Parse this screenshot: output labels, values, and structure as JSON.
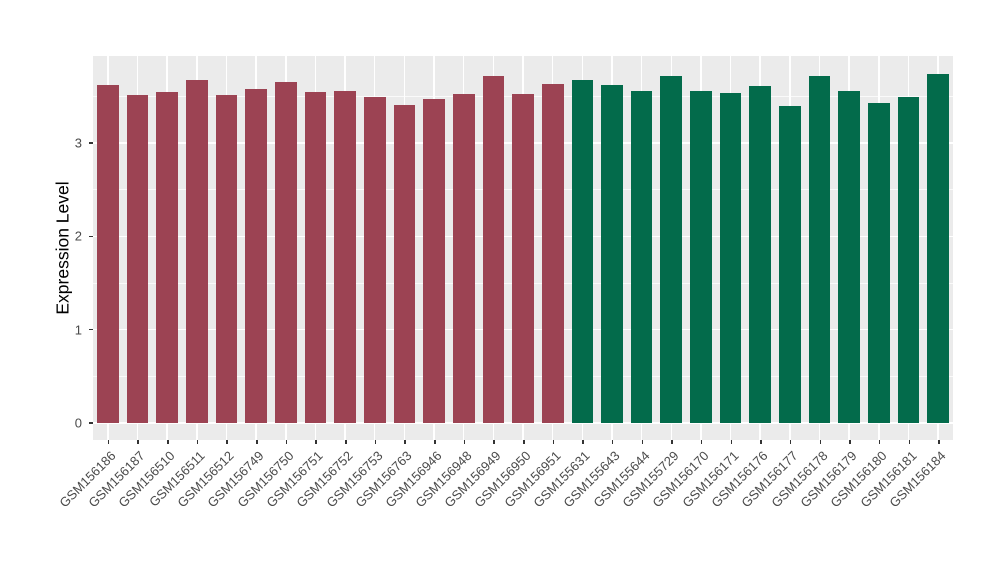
{
  "chart_data": {
    "type": "bar",
    "title": "",
    "xlabel": "",
    "ylabel": "Expression Level",
    "ylim": [
      0,
      3.93
    ],
    "yticks": [
      0,
      1,
      2,
      3
    ],
    "yticks_minor": [
      0.5,
      1.5,
      2.5,
      3.5
    ],
    "grid": "on",
    "legend_position": "none",
    "panel_background": "#EBEBEB",
    "gridline_color": "#FFFFFF",
    "group_colors": {
      "group1": "#9C4353",
      "group2": "#036B4B"
    },
    "categories": [
      "GSM156186",
      "GSM156187",
      "GSM156510",
      "GSM156511",
      "GSM156512",
      "GSM156749",
      "GSM156750",
      "GSM156751",
      "GSM156752",
      "GSM156753",
      "GSM156763",
      "GSM156946",
      "GSM156948",
      "GSM156949",
      "GSM156950",
      "GSM156951",
      "GSM155631",
      "GSM155643",
      "GSM155644",
      "GSM155729",
      "GSM156170",
      "GSM156171",
      "GSM156176",
      "GSM156177",
      "GSM156178",
      "GSM156179",
      "GSM156180",
      "GSM156181",
      "GSM156184"
    ],
    "values": [
      3.62,
      3.51,
      3.55,
      3.68,
      3.51,
      3.58,
      3.65,
      3.55,
      3.56,
      3.49,
      3.41,
      3.47,
      3.53,
      3.72,
      3.53,
      3.63,
      3.68,
      3.62,
      3.56,
      3.72,
      3.56,
      3.54,
      3.61,
      3.4,
      3.72,
      3.56,
      3.43,
      3.49,
      3.74
    ],
    "bar_groups": [
      "group1",
      "group1",
      "group1",
      "group1",
      "group1",
      "group1",
      "group1",
      "group1",
      "group1",
      "group1",
      "group1",
      "group1",
      "group1",
      "group1",
      "group1",
      "group1",
      "group2",
      "group2",
      "group2",
      "group2",
      "group2",
      "group2",
      "group2",
      "group2",
      "group2",
      "group2",
      "group2",
      "group2",
      "group2"
    ]
  }
}
